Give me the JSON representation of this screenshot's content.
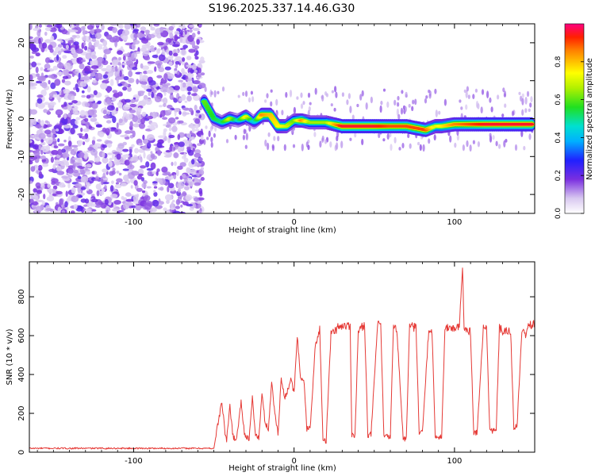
{
  "title": "S196.2025.337.14.46.G30",
  "colors": {
    "snr_line": "#e53935",
    "background": "#ffffff",
    "axis": "#000000"
  },
  "chart_data": [
    {
      "type": "heatmap",
      "name": "spectrogram",
      "xlabel": "Height of straight line (km)",
      "ylabel": "Frequency (Hz)",
      "xlim": [
        -165,
        150
      ],
      "ylim": [
        -25,
        25
      ],
      "x_ticks": [
        -100,
        0,
        100
      ],
      "x_tick_labels": [
        "-100",
        "0",
        "100"
      ],
      "y_ticks": [
        -20,
        -10,
        0,
        10,
        20
      ],
      "y_tick_labels": [
        "-20",
        "-10",
        "0",
        "10",
        "20"
      ],
      "noise_region": [
        -165,
        -57
      ],
      "ridge": {
        "description": "dominant frequency ridge vs height",
        "x": [
          -56,
          -50,
          -45,
          -40,
          -35,
          -30,
          -25,
          -20,
          -15,
          -10,
          -5,
          0,
          5,
          10,
          20,
          30,
          40,
          50,
          60,
          70,
          76,
          82,
          88,
          92,
          100,
          110,
          120,
          130,
          140,
          149
        ],
        "y": [
          4.5,
          0,
          -1,
          0,
          -0.5,
          0.5,
          -1,
          1,
          1,
          -2,
          -2,
          -0.5,
          -0.5,
          -1,
          -1,
          -2,
          -2,
          -2,
          -2,
          -2,
          -2.5,
          -3,
          -2,
          -2,
          -1.5,
          -1.5,
          -1.5,
          -1.5,
          -1.5,
          -1.5
        ],
        "amp": [
          0.6,
          0.55,
          0.5,
          0.7,
          0.45,
          0.75,
          0.4,
          0.85,
          0.8,
          0.75,
          0.7,
          0.6,
          0.85,
          0.65,
          0.65,
          0.95,
          0.95,
          0.95,
          0.9,
          0.9,
          0.9,
          0.9,
          0.7,
          0.75,
          0.85,
          0.9,
          0.95,
          0.95,
          0.95,
          0.95
        ]
      },
      "colorbar": {
        "label": "Normalized spectral amplitude",
        "range": [
          0,
          1
        ],
        "ticks": [
          0,
          0.2,
          0.4,
          0.6,
          0.8
        ],
        "tick_labels": [
          "0.0",
          "0.2",
          "0.4",
          "0.6",
          "0.8"
        ]
      }
    },
    {
      "type": "line",
      "name": "snr",
      "xlabel": "Height of straight line (km)",
      "ylabel": "SNR (10 * v/v)",
      "xlim": [
        -165,
        150
      ],
      "ylim": [
        0,
        980
      ],
      "x_ticks": [
        -100,
        0,
        100
      ],
      "x_tick_labels": [
        "-100",
        "0",
        "100"
      ],
      "y_ticks": [
        0,
        200,
        400,
        600,
        800
      ],
      "y_tick_labels": [
        "0",
        "200",
        "400",
        "600",
        "800"
      ],
      "x": [
        -165,
        -50,
        -48,
        -45,
        -43,
        -42,
        -40,
        -38,
        -36,
        -33,
        -31,
        -28,
        -26,
        -24,
        -22,
        -20,
        -18,
        -16,
        -14,
        -12,
        -10,
        -8,
        -6,
        -4,
        -2,
        0,
        2,
        4,
        6,
        8,
        10,
        13,
        16,
        18,
        20,
        23,
        25,
        28,
        30,
        35,
        36,
        38,
        40,
        44,
        46,
        48,
        52,
        54,
        56,
        60,
        62,
        64,
        68,
        70,
        72,
        76,
        78,
        80,
        84,
        86,
        88,
        92,
        94,
        96,
        100,
        103,
        105,
        106,
        107,
        110,
        112,
        114,
        118,
        120,
        122,
        126,
        128,
        130,
        135,
        137,
        139,
        142,
        144,
        146,
        150
      ],
      "values": [
        20,
        20,
        120,
        260,
        100,
        60,
        240,
        80,
        60,
        260,
        100,
        60,
        280,
        90,
        70,
        300,
        150,
        120,
        360,
        200,
        100,
        380,
        280,
        320,
        380,
        300,
        600,
        380,
        380,
        120,
        120,
        520,
        640,
        60,
        60,
        610,
        620,
        650,
        650,
        650,
        90,
        90,
        620,
        660,
        90,
        90,
        650,
        660,
        80,
        80,
        650,
        640,
        70,
        70,
        650,
        640,
        100,
        100,
        640,
        620,
        80,
        80,
        630,
        640,
        640,
        640,
        950,
        640,
        640,
        620,
        100,
        100,
        640,
        640,
        110,
        110,
        640,
        620,
        620,
        130,
        130,
        630,
        600,
        650,
        660
      ]
    }
  ]
}
